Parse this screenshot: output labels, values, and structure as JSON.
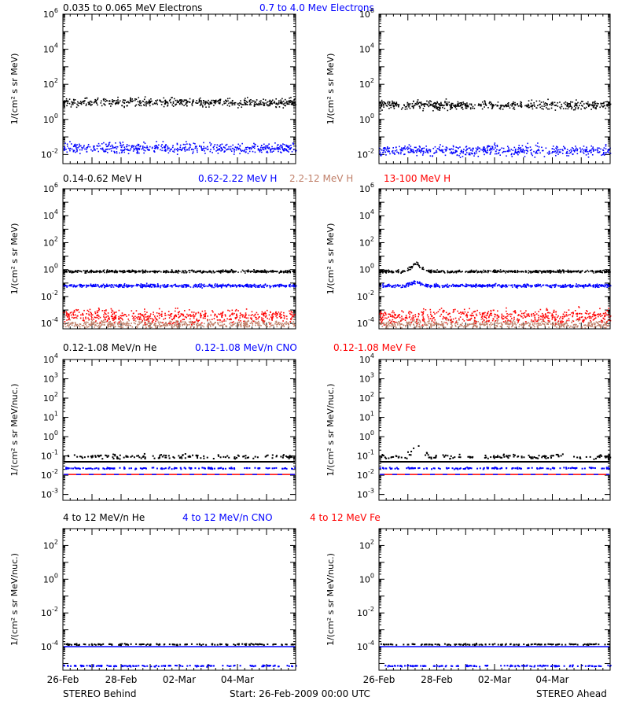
{
  "footer": {
    "left": "STEREO Behind",
    "center": "Start: 26-Feb-2009 00:00 UTC",
    "right": "STEREO Ahead"
  },
  "colors": {
    "black": "#000000",
    "blue": "#0000ff",
    "red": "#ff0000",
    "tan": "#c0806a"
  },
  "chart_data": [
    {
      "type": "scatter",
      "row": 0,
      "legend": [
        {
          "text": "0.035 to 0.065 MeV Electrons",
          "color": "black"
        },
        {
          "text": "0.7 to 4.0 Mev Electrons",
          "color": "blue"
        }
      ],
      "ylabel": "1/(cm² s sr MeV)",
      "yscale": "log",
      "ylim": [
        0.003,
        1000000
      ],
      "ytick_exponents": [
        -2,
        0,
        2,
        4,
        6
      ],
      "xlim": [
        "26-Feb-2009",
        "06-Mar-2009"
      ],
      "xtick_labels": [
        "26-Feb",
        "28-Feb",
        "02-Mar",
        "04-Mar"
      ],
      "panels": [
        {
          "spacecraft": "STEREO Behind",
          "series": [
            {
              "color": "black",
              "level": 10,
              "spread_dex": 0.12
            },
            {
              "color": "blue",
              "level": 0.025,
              "spread_dex": 0.15
            }
          ]
        },
        {
          "spacecraft": "STEREO Ahead",
          "series": [
            {
              "color": "black",
              "level": 7,
              "spread_dex": 0.12
            },
            {
              "color": "blue",
              "level": 0.018,
              "spread_dex": 0.15
            }
          ]
        }
      ]
    },
    {
      "type": "scatter",
      "row": 1,
      "legend": [
        {
          "text": "0.14-0.62 MeV H",
          "color": "black"
        },
        {
          "text": "0.62-2.22 MeV H",
          "color": "blue"
        },
        {
          "text": "2.2-12 MeV H",
          "color": "tan"
        },
        {
          "text": "13-100 MeV H",
          "color": "red"
        }
      ],
      "ylabel": "1/(cm² s sr MeV)",
      "yscale": "log",
      "ylim": [
        4e-05,
        1000000
      ],
      "ytick_exponents": [
        -4,
        -2,
        0,
        2,
        4,
        6
      ],
      "xlim": [
        "26-Feb-2009",
        "06-Mar-2009"
      ],
      "xtick_labels": [
        "26-Feb",
        "28-Feb",
        "02-Mar",
        "04-Mar"
      ],
      "panels": [
        {
          "spacecraft": "STEREO Behind",
          "series": [
            {
              "color": "black",
              "level": 0.8,
              "spread_dex": 0.05
            },
            {
              "color": "blue",
              "level": 0.07,
              "spread_dex": 0.06
            },
            {
              "color": "tan",
              "level": 0.0001,
              "spread_dex": 0.15
            },
            {
              "color": "red",
              "level": 0.0004,
              "spread_dex": 0.25
            }
          ]
        },
        {
          "spacecraft": "STEREO Ahead",
          "series": [
            {
              "color": "black",
              "level": 0.8,
              "spread_dex": 0.05,
              "peak_x": [
                0.9,
                1.6
              ],
              "peak_factor": 4
            },
            {
              "color": "blue",
              "level": 0.07,
              "spread_dex": 0.06,
              "peak_x": [
                0.9,
                1.6
              ],
              "peak_factor": 2
            },
            {
              "color": "tan",
              "level": 0.0001,
              "spread_dex": 0.15
            },
            {
              "color": "red",
              "level": 0.0004,
              "spread_dex": 0.25
            }
          ]
        }
      ]
    },
    {
      "type": "scatter",
      "row": 2,
      "legend": [
        {
          "text": "0.12-1.08 MeV/n He",
          "color": "black"
        },
        {
          "text": "0.12-1.08 MeV/n CNO",
          "color": "blue"
        },
        {
          "text": "0.12-1.08 MeV Fe",
          "color": "red"
        }
      ],
      "ylabel": "1/(cm² s sr MeV/nuc.)",
      "yscale": "log",
      "ylim": [
        0.0005,
        10000
      ],
      "ytick_exponents": [
        -3,
        -2,
        -1,
        0,
        1,
        2,
        3,
        4
      ],
      "xlim": [
        "26-Feb-2009",
        "06-Mar-2009"
      ],
      "xtick_labels": [
        "26-Feb",
        "28-Feb",
        "02-Mar",
        "04-Mar"
      ],
      "panels": [
        {
          "spacecraft": "STEREO Behind",
          "series": [
            {
              "color": "black",
              "level": 0.05,
              "style": "line"
            },
            {
              "color": "black",
              "level": 0.1,
              "spread_dex": 0.06,
              "sparse": true
            },
            {
              "color": "blue",
              "level": 0.025,
              "spread_dex": 0.02,
              "sparse": true
            },
            {
              "color": "red",
              "level": 0.011,
              "style": "line"
            },
            {
              "color": "blue",
              "level": 0.011,
              "style": "dashed"
            }
          ]
        },
        {
          "spacecraft": "STEREO Ahead",
          "series": [
            {
              "color": "black",
              "level": 0.05,
              "style": "line"
            },
            {
              "color": "black",
              "level": 0.1,
              "spread_dex": 0.06,
              "sparse": true,
              "peak_x": [
                0.9,
                1.7
              ],
              "peak_factor": 4
            },
            {
              "color": "blue",
              "level": 0.025,
              "spread_dex": 0.02,
              "sparse": true
            },
            {
              "color": "red",
              "level": 0.011,
              "style": "line"
            },
            {
              "color": "blue",
              "level": 0.011,
              "style": "dashed"
            }
          ]
        }
      ]
    },
    {
      "type": "scatter",
      "row": 3,
      "legend": [
        {
          "text": "4 to 12 MeV/n He",
          "color": "black"
        },
        {
          "text": "4 to 12 MeV/n CNO",
          "color": "blue"
        },
        {
          "text": "4 to 12 MeV Fe",
          "color": "red"
        }
      ],
      "ylabel": "1/(cm² s sr MeV/nuc.)",
      "yscale": "log",
      "ylim": [
        4e-06,
        1000
      ],
      "ytick_exponents": [
        -4,
        -2,
        0,
        2
      ],
      "xlim": [
        "26-Feb-2009",
        "06-Mar-2009"
      ],
      "xtick_labels": [
        "26-Feb",
        "28-Feb",
        "02-Mar",
        "04-Mar"
      ],
      "panels": [
        {
          "spacecraft": "STEREO Behind",
          "series": [
            {
              "color": "blue",
              "level": 0.0001,
              "style": "line"
            },
            {
              "color": "black",
              "level": 0.00015,
              "spread_dex": 0.02,
              "sparse": true
            },
            {
              "color": "blue",
              "level": 8e-06,
              "spread_dex": 0.02,
              "sparse": true
            }
          ]
        },
        {
          "spacecraft": "STEREO Ahead",
          "series": [
            {
              "color": "blue",
              "level": 0.0001,
              "style": "line"
            },
            {
              "color": "black",
              "level": 0.00015,
              "spread_dex": 0.02,
              "sparse": true
            },
            {
              "color": "blue",
              "level": 8e-06,
              "spread_dex": 0.02,
              "sparse": true
            }
          ]
        }
      ]
    }
  ]
}
